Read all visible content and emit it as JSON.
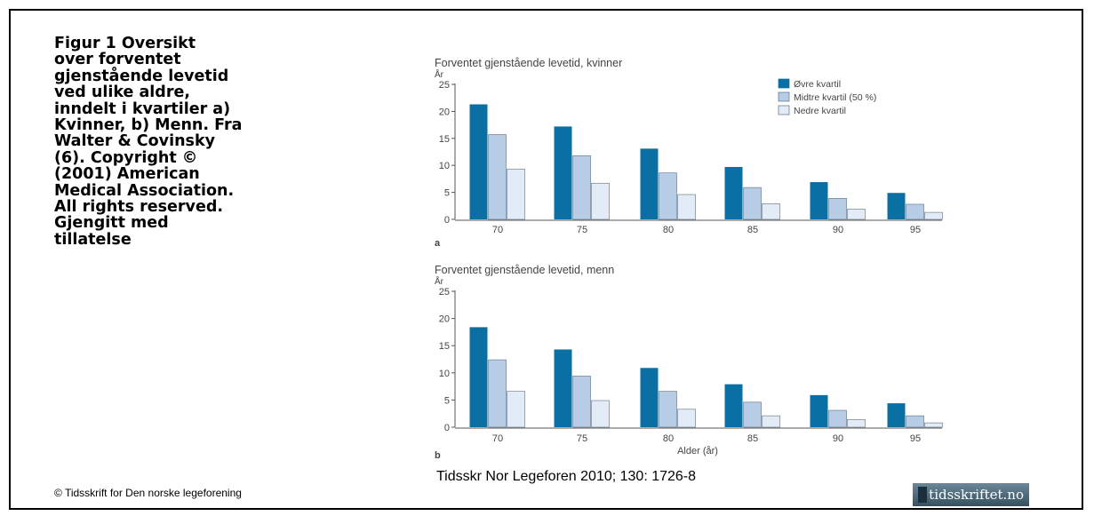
{
  "caption_lines": [
    "Figur 1  Oversikt",
    "over forventet",
    "gjenstående levetid",
    "ved ulike aldre,",
    "inndelt  i kvartiler a)",
    "Kvinner, b) Menn. Fra",
    "Walter & Covinsky",
    "(6). Copyright ©",
    "(2001) American",
    "Medical Association.",
    "All  rights reserved.",
    "Gjengitt med",
    "tillatelse"
  ],
  "citation": "Tidsskr Nor Legeforen 2010; 130: 1726-8",
  "copyright": "© Tidsskrift for Den norske legeforening",
  "logo": "tidsskriftet.no",
  "colors": {
    "dark": "#0a6fa3",
    "mid": "#b7cde6",
    "light": "#e3ecf6",
    "edge": "#5a6f82"
  },
  "chart_data": [
    {
      "type": "bar",
      "panel": "a",
      "title": "Forventet gjenstående levetid, kvinner",
      "ylabel": "År",
      "xlabel": "",
      "categories": [
        "70",
        "75",
        "80",
        "85",
        "90",
        "95"
      ],
      "ylim": [
        0,
        25
      ],
      "yticks": [
        "0",
        "5",
        "10",
        "15",
        "20",
        "25"
      ],
      "legend_position": "top-right",
      "series": [
        {
          "name": "Øvre kvartil",
          "values": [
            21.3,
            17.2,
            13.1,
            9.7,
            6.9,
            4.9
          ]
        },
        {
          "name": "Midtre kvartil (50 %)",
          "values": [
            15.7,
            11.8,
            8.6,
            5.9,
            3.9,
            2.8
          ]
        },
        {
          "name": "Nedre kvartil",
          "values": [
            9.3,
            6.7,
            4.6,
            2.9,
            1.9,
            1.3
          ]
        }
      ]
    },
    {
      "type": "bar",
      "panel": "b",
      "title": "Forventet gjenstående levetid, menn",
      "ylabel": "År",
      "xlabel": "Alder (år)",
      "categories": [
        "70",
        "75",
        "80",
        "85",
        "90",
        "95"
      ],
      "ylim": [
        0,
        25
      ],
      "yticks": [
        "0",
        "5",
        "10",
        "15",
        "20",
        "25"
      ],
      "series": [
        {
          "values": [
            18.4,
            14.3,
            10.9,
            7.9,
            5.9,
            4.4
          ]
        },
        {
          "values": [
            12.4,
            9.4,
            6.6,
            4.6,
            3.1,
            2.1
          ]
        },
        {
          "values": [
            6.6,
            4.9,
            3.3,
            2.1,
            1.4,
            0.8
          ]
        }
      ]
    }
  ]
}
